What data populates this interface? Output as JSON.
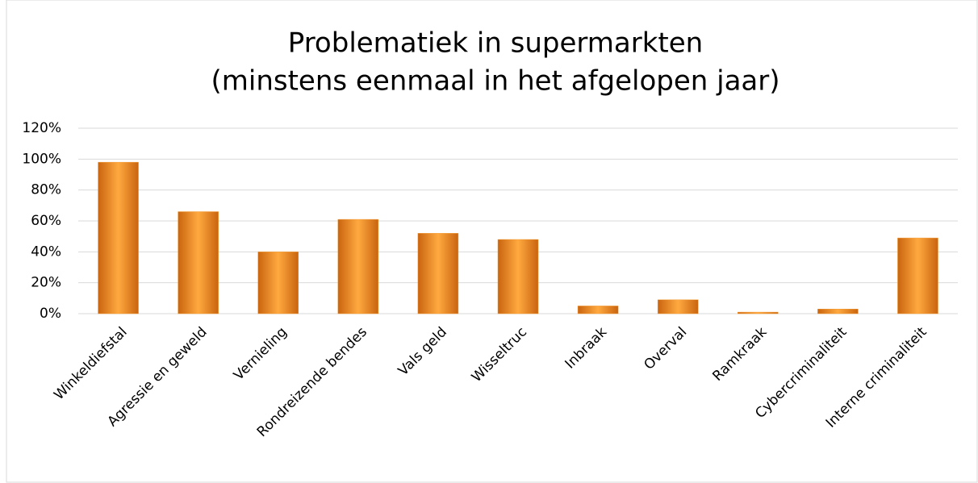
{
  "chart_data": {
    "type": "bar",
    "title": "Problematiek in supermarkten",
    "subtitle": "(minstens eenmaal in het afgelopen jaar)",
    "categories": [
      "Winkeldiefstal",
      "Agressie en geweld",
      "Vernieling",
      "Rondreizende bendes",
      "Vals geld",
      "Wisseltruc",
      "Inbraak",
      "Overval",
      "Ramkraak",
      "Cybercriminaliteit",
      "Interne criminaliteit"
    ],
    "values": [
      98,
      66,
      40,
      61,
      52,
      48,
      5,
      9,
      1,
      3,
      49
    ],
    "color": "#f39c35",
    "ylim": [
      0,
      120
    ],
    "yticks": [
      {
        "value": 0,
        "label": "0%"
      },
      {
        "value": 20,
        "label": "20%"
      },
      {
        "value": 40,
        "label": "40%"
      },
      {
        "value": 60,
        "label": "60%"
      },
      {
        "value": 80,
        "label": "80%"
      },
      {
        "value": 100,
        "label": "100%"
      },
      {
        "value": 120,
        "label": "120%"
      }
    ],
    "grid": true
  }
}
